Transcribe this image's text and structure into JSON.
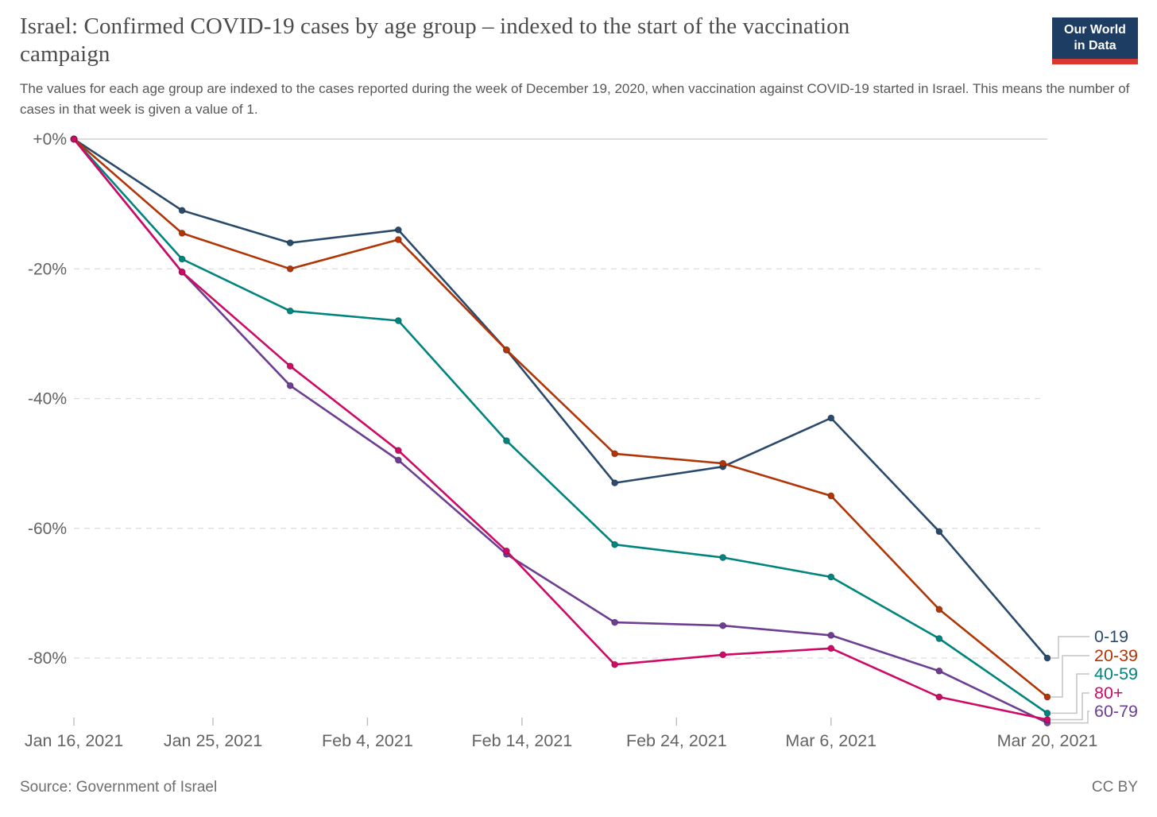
{
  "header": {
    "title": "Israel: Confirmed COVID-19 cases by age group – indexed to the start of the vaccination campaign",
    "subtitle": "The values for each age group are indexed to the cases reported during the week of December 19, 2020, when vaccination against COVID-19 started in Israel. This means the number of cases in that week is given a value of 1."
  },
  "logo": {
    "line1": "Our World",
    "line2": "in Data",
    "background": "#1d3d63",
    "stripe_color": "#d8382f"
  },
  "footer": {
    "source": "Source: Government of Israel",
    "license": "CC BY"
  },
  "chart_data": {
    "type": "line",
    "title": "Israel: Confirmed COVID-19 cases by age group – indexed to the start of the vaccination campaign",
    "xlabel": "",
    "ylabel": "",
    "grid": "dashed-horizontal",
    "legend_position": "right-of-line-ends",
    "x_dates": [
      "Jan 16, 2021",
      "Jan 23, 2021",
      "Jan 30, 2021",
      "Feb 6, 2021",
      "Feb 13, 2021",
      "Feb 20, 2021",
      "Feb 27, 2021",
      "Mar 6, 2021",
      "Mar 13, 2021",
      "Mar 20, 2021"
    ],
    "x_days": [
      0,
      7,
      14,
      21,
      28,
      35,
      42,
      49,
      56,
      63
    ],
    "x_ticks": [
      {
        "label": "Jan 16, 2021",
        "day": 0
      },
      {
        "label": "Jan 25, 2021",
        "day": 9
      },
      {
        "label": "Feb 4, 2021",
        "day": 19
      },
      {
        "label": "Feb 14, 2021",
        "day": 29
      },
      {
        "label": "Feb 24, 2021",
        "day": 39
      },
      {
        "label": "Mar 6, 2021",
        "day": 49
      },
      {
        "label": "Mar 20, 2021",
        "day": 63
      }
    ],
    "y_ticks": [
      {
        "label": "+0%",
        "value": 0
      },
      {
        "label": "-20%",
        "value": -20
      },
      {
        "label": "-40%",
        "value": -40
      },
      {
        "label": "-60%",
        "value": -60
      },
      {
        "label": "-80%",
        "value": -80
      }
    ],
    "ylim": [
      -92,
      2
    ],
    "xlim_days": [
      0,
      63
    ],
    "series": [
      {
        "name": "0-19",
        "color": "#2a4a6b",
        "values": [
          0,
          -11,
          -16,
          -14,
          -32.5,
          -53,
          -50.5,
          -43,
          -60.5,
          -80
        ]
      },
      {
        "name": "20-39",
        "color": "#b13507",
        "values": [
          0,
          -14.5,
          -20,
          -15.5,
          -32.5,
          -48.5,
          -50,
          -55,
          -72.5,
          -86
        ]
      },
      {
        "name": "40-59",
        "color": "#00847e",
        "values": [
          0,
          -18.5,
          -26.5,
          -28,
          -46.5,
          -62.5,
          -64.5,
          -67.5,
          -77,
          -88.5
        ]
      },
      {
        "name": "60-79",
        "color": "#6d3e91",
        "values": [
          0,
          -20.5,
          -38,
          -49.5,
          -64,
          -74.5,
          -75,
          -76.5,
          -82,
          -90
        ]
      },
      {
        "name": "80+",
        "color": "#cf0a66",
        "values": [
          0,
          -20.5,
          -35,
          -48,
          -63.5,
          -81,
          -79.5,
          -78.5,
          -86,
          -89.5
        ]
      }
    ],
    "legend_order_top_to_bottom": [
      "0-19",
      "20-39",
      "40-59",
      "80+",
      "60-79"
    ],
    "draw_order": [
      "0-19",
      "60-79",
      "40-59",
      "20-39",
      "80+"
    ],
    "axis_text_color": "#636363",
    "gridline_color": "#dcdcdc",
    "zeroline_color": "#c8c8c8",
    "connector_color": "#c4c4c4"
  }
}
